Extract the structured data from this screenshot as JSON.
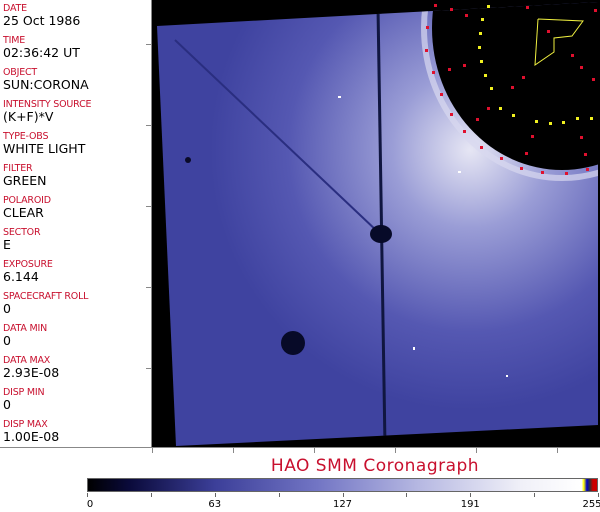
{
  "header_fields": [
    {
      "label": "DATE",
      "value": "25 Oct 1986"
    },
    {
      "label": "TIME",
      "value": "02:36:42 UT"
    },
    {
      "label": "OBJECT",
      "value": "SUN:CORONA"
    },
    {
      "label": "INTENSITY SOURCE",
      "value": "(K+F)*V"
    },
    {
      "label": "TYPE-OBS",
      "value": "WHITE LIGHT"
    },
    {
      "label": "FILTER",
      "value": "GREEN"
    },
    {
      "label": "POLAROID",
      "value": "CLEAR"
    },
    {
      "label": "SECTOR",
      "value": "E"
    },
    {
      "label": "EXPOSURE",
      "value": "6.144"
    },
    {
      "label": "SPACECRAFT ROLL",
      "value": "0"
    },
    {
      "label": "DATA MIN",
      "value": "0"
    },
    {
      "label": "DATA MAX",
      "value": "2.93E-08"
    },
    {
      "label": "DISP MIN",
      "value": "0"
    },
    {
      "label": "DISP MAX",
      "value": "1.00E-08"
    }
  ],
  "title": "HAO   SMM Coronagraph",
  "colorbar": {
    "min": 0,
    "max": 255,
    "ticks": [
      "0",
      "63",
      "127",
      "191",
      "255"
    ],
    "colormap": "black-blue-white"
  },
  "colors": {
    "label": "#c8102e",
    "image_blue": "#4a4fa8"
  }
}
